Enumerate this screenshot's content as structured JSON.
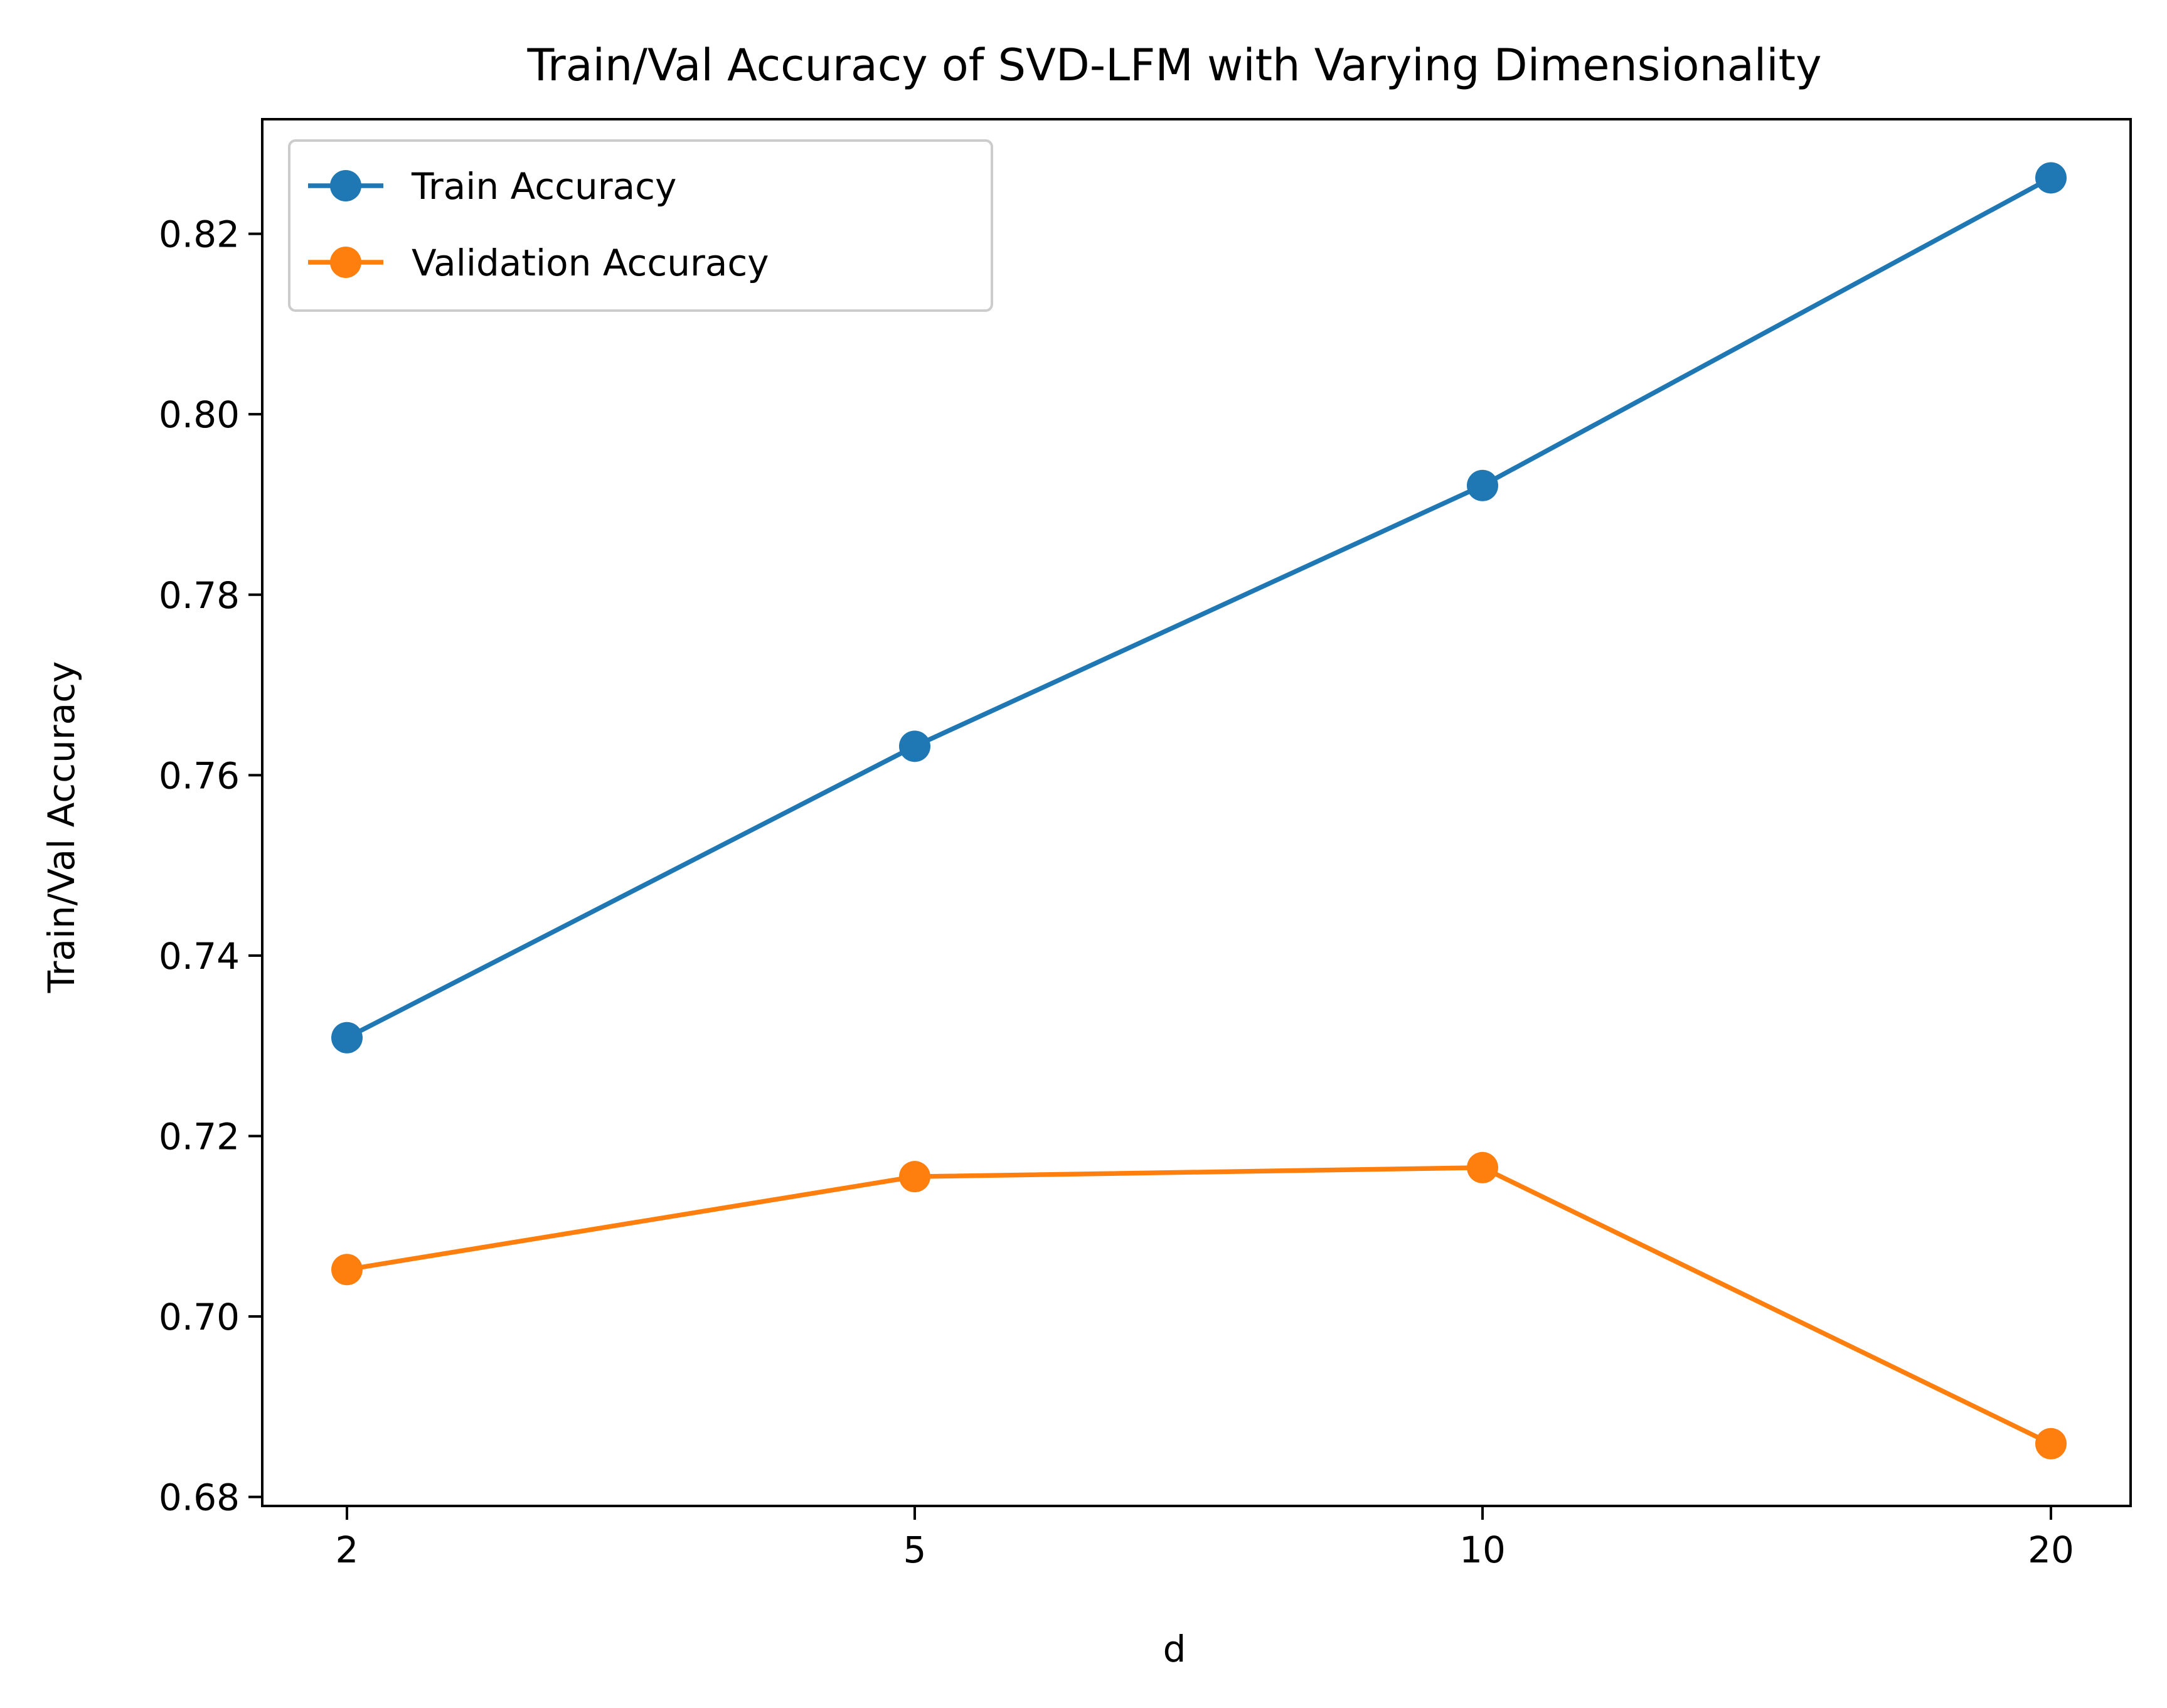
{
  "chart_data": {
    "type": "line",
    "title": "Train/Val Accuracy of SVD-LFM with Varying Dimensionality",
    "xlabel": "d",
    "ylabel": "Train/Val Accuracy",
    "categories": [
      "2",
      "5",
      "10",
      "20"
    ],
    "yticks": [
      "0.68",
      "0.70",
      "0.72",
      "0.74",
      "0.76",
      "0.78",
      "0.80",
      "0.82"
    ],
    "ylim": [
      0.679,
      0.8327
    ],
    "grid": false,
    "legend_position": "top-left",
    "series": [
      {
        "name": "Train Accuracy",
        "color": "#1f77b4",
        "marker": "circle",
        "values": [
          0.7309,
          0.7632,
          0.7921,
          0.8262
        ]
      },
      {
        "name": "Validation Accuracy",
        "color": "#ff7f0e",
        "marker": "circle",
        "values": [
          0.7052,
          0.7155,
          0.7165,
          0.6859
        ]
      }
    ]
  }
}
